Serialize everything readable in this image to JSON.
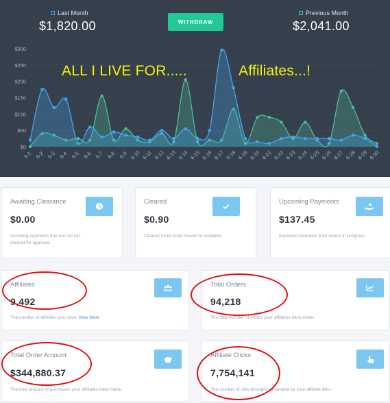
{
  "header": {
    "last_month_label": "Last Month",
    "last_month_amount": "$1,820.00",
    "previous_month_label": "Previous Month",
    "previous_month_amount": "$2,041.00",
    "withdraw_label": "WITHDRAW",
    "overlay_left": "ALL I LIVE FOR.....",
    "overlay_right": "Affiliates...!"
  },
  "chart_data": {
    "type": "area",
    "x": [
      "6-1",
      "6-2",
      "6-3",
      "6-4",
      "6-5",
      "6-6",
      "6-7",
      "6-8",
      "6-9",
      "6-10",
      "6-11",
      "6-12",
      "6-13",
      "6-14",
      "6-15",
      "6-16",
      "6-17",
      "6-18",
      "6-19",
      "6-20",
      "6-21",
      "6-22",
      "6-23",
      "6-24",
      "6-25",
      "6-26",
      "6-27",
      "6-28",
      "6-29",
      "6-30"
    ],
    "yticks": [
      "$0",
      "$50",
      "$100",
      "$150",
      "$200",
      "$250",
      "$300"
    ],
    "ylim": [
      0,
      300
    ],
    "series": [
      {
        "name": "Last Month",
        "color": "#3fa9f5",
        "values": [
          20,
          175,
          120,
          145,
          10,
          60,
          30,
          45,
          35,
          30,
          20,
          50,
          25,
          55,
          25,
          50,
          295,
          180,
          25,
          15,
          10,
          25,
          30,
          25,
          25,
          25,
          20,
          35,
          25,
          0
        ]
      },
      {
        "name": "Previous Month",
        "color": "#4bc0a0",
        "values": [
          0,
          40,
          35,
          20,
          25,
          20,
          155,
          20,
          55,
          20,
          15,
          40,
          15,
          205,
          15,
          20,
          20,
          115,
          10,
          90,
          90,
          75,
          25,
          75,
          20,
          10,
          170,
          120,
          35,
          10
        ]
      }
    ]
  },
  "cards": {
    "awaiting": {
      "label": "Awaiting Clearance",
      "value": "$0.00",
      "desc": "Incoming payments that are not yet cleared for approval.",
      "icon": "clock-icon"
    },
    "cleared": {
      "label": "Cleared",
      "value": "$0.90",
      "desc": "Cleared funds to be moved to available.",
      "icon": "check-icon"
    },
    "upcoming": {
      "label": "Upcoming Payments",
      "value": "$137.45",
      "desc": "Expected revenues from orders in progress.",
      "icon": "hand-coin-icon"
    },
    "affiliates": {
      "label": "Affiliates",
      "value": "9,492",
      "desc_pre": "The number of affiliates you have.",
      "desc_link": "View More",
      "icon": "users-icon"
    },
    "total_orders": {
      "label": "Total Orders",
      "value": "94,218",
      "desc": "The total number of orders your affiliates have made.",
      "icon": "chart-icon"
    },
    "order_amount": {
      "label": "Total Order Amount",
      "value": "$344,880.37",
      "desc": "The total amount of purchases your affiliates have made.",
      "icon": "piggy-bank-icon"
    },
    "clicks": {
      "label": "Affiliate Clicks",
      "value": "7,754,141",
      "desc": "The number of click-throughs generated by your affiliate links.",
      "icon": "pointer-icon"
    }
  }
}
